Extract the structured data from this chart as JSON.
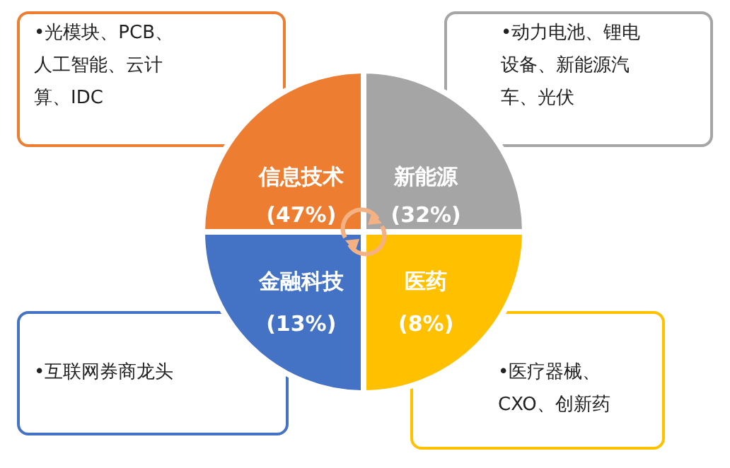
{
  "chart_data": {
    "type": "other",
    "categories": [
      "信息技术",
      "新能源",
      "医药",
      "金融科技"
    ],
    "values": [
      47,
      32,
      8,
      13
    ],
    "value_labels": [
      "(47%)",
      "(32%)",
      "(8%)",
      "(13%)"
    ],
    "colors": [
      "#ed7d31",
      "#a5a5a5",
      "#ffc000",
      "#4472c4"
    ],
    "annotations": [
      "•光模块、PCB、人工智能、云计算、IDC",
      "•动力电池、锂电设备、新能源汽车、光伏",
      "•医疗器械、CXO、创新药",
      "•互联网券商龙头"
    ]
  }
}
